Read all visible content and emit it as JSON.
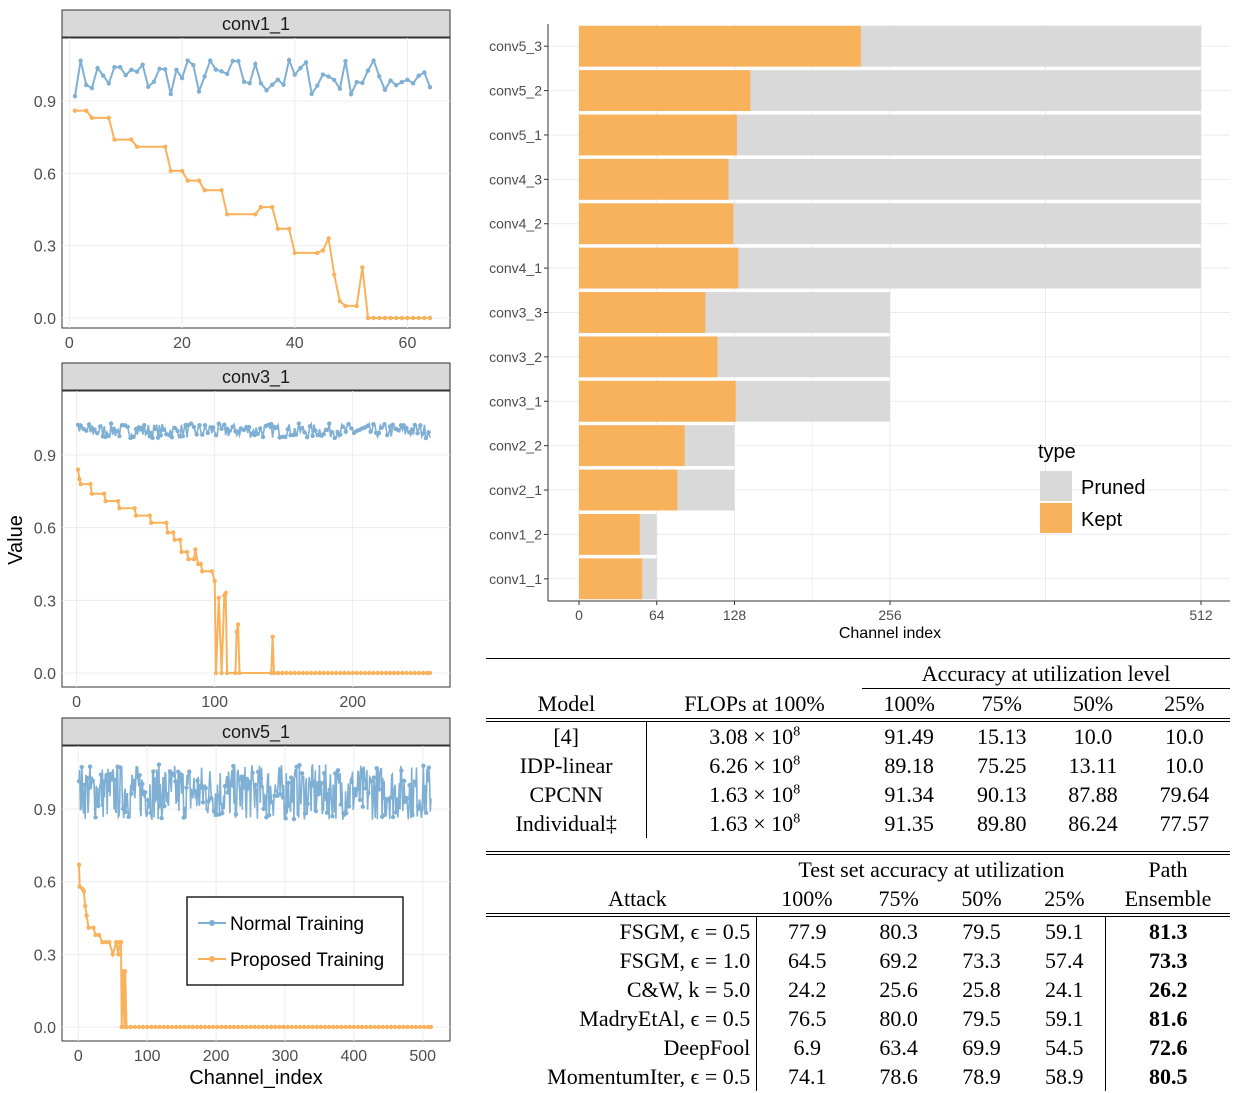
{
  "colors": {
    "normal": "#7fb0d4",
    "proposed": "#f9b25c",
    "pruned": "#d9d9d9",
    "kept": "#f9b25c",
    "strip": "#d9d9d9",
    "grid": "#ececec"
  },
  "chart_data": [
    {
      "type": "line",
      "facets": [
        "conv1_1",
        "conv3_1",
        "conv5_1"
      ],
      "ylabel": "Value",
      "xlabel": "Channel_index",
      "yticks": [
        "0.0",
        "0.3",
        "0.6",
        "0.9"
      ],
      "xticks_by_facet": [
        [
          "0",
          "20",
          "40",
          "60"
        ],
        [
          "0",
          "100",
          "200"
        ],
        [
          "0",
          "100",
          "200",
          "300",
          "400",
          "500"
        ]
      ],
      "legend": [
        "Normal Training",
        "Proposed Training"
      ],
      "series_by_facet": [
        {
          "channels": 64,
          "normal_mean": 1.0,
          "normal_range": [
            0.95,
            1.11
          ],
          "proposed": [
            [
              1,
              0.86
            ],
            [
              3,
              0.86
            ],
            [
              4,
              0.83
            ],
            [
              7,
              0.83
            ],
            [
              8,
              0.74
            ],
            [
              11,
              0.74
            ],
            [
              12,
              0.71
            ],
            [
              17,
              0.71
            ],
            [
              18,
              0.61
            ],
            [
              20,
              0.61
            ],
            [
              21,
              0.57
            ],
            [
              23,
              0.57
            ],
            [
              24,
              0.53
            ],
            [
              27,
              0.53
            ],
            [
              28,
              0.43
            ],
            [
              33,
              0.43
            ],
            [
              34,
              0.46
            ],
            [
              36,
              0.46
            ],
            [
              37,
              0.37
            ],
            [
              39,
              0.37
            ],
            [
              40,
              0.27
            ],
            [
              44,
              0.27
            ],
            [
              45,
              0.28
            ],
            [
              46,
              0.33
            ],
            [
              47,
              0.18
            ],
            [
              48,
              0.07
            ],
            [
              49,
              0.05
            ],
            [
              51,
              0.05
            ],
            [
              52,
              0.21
            ],
            [
              53,
              0.0
            ],
            [
              64,
              0.0
            ]
          ]
        },
        {
          "channels": 256,
          "normal_mean": 1.0,
          "normal_range": [
            0.97,
            1.03
          ],
          "proposed": [
            [
              1,
              0.84
            ],
            [
              2,
              0.8
            ],
            [
              3,
              0.78
            ],
            [
              10,
              0.78
            ],
            [
              11,
              0.74
            ],
            [
              20,
              0.74
            ],
            [
              21,
              0.71
            ],
            [
              30,
              0.71
            ],
            [
              31,
              0.68
            ],
            [
              42,
              0.68
            ],
            [
              43,
              0.65
            ],
            [
              53,
              0.65
            ],
            [
              54,
              0.62
            ],
            [
              65,
              0.62
            ],
            [
              66,
              0.58
            ],
            [
              70,
              0.58
            ],
            [
              71,
              0.55
            ],
            [
              75,
              0.55
            ],
            [
              76,
              0.5
            ],
            [
              80,
              0.5
            ],
            [
              81,
              0.47
            ],
            [
              85,
              0.47
            ],
            [
              86,
              0.51
            ],
            [
              88,
              0.45
            ],
            [
              90,
              0.45
            ],
            [
              91,
              0.42
            ],
            [
              98,
              0.42
            ],
            [
              100,
              0.38
            ],
            [
              101,
              0.0
            ],
            [
              103,
              0.31
            ],
            [
              105,
              0.0
            ],
            [
              107,
              0.32
            ],
            [
              108,
              0.33
            ],
            [
              109,
              0.0
            ],
            [
              115,
              0.0
            ],
            [
              116,
              0.17
            ],
            [
              117,
              0.2
            ],
            [
              118,
              0.0
            ],
            [
              141,
              0.0
            ],
            [
              142,
              0.15
            ],
            [
              143,
              0.0
            ],
            [
              256,
              0.0
            ]
          ]
        },
        {
          "channels": 512,
          "normal_mean": 0.97,
          "normal_range": [
            0.82,
            1.05
          ],
          "proposed": [
            [
              1,
              0.67
            ],
            [
              2,
              0.58
            ],
            [
              6,
              0.57
            ],
            [
              8,
              0.56
            ],
            [
              10,
              0.5
            ],
            [
              12,
              0.46
            ],
            [
              15,
              0.41
            ],
            [
              22,
              0.41
            ],
            [
              25,
              0.38
            ],
            [
              30,
              0.38
            ],
            [
              35,
              0.35
            ],
            [
              40,
              0.35
            ],
            [
              45,
              0.35
            ],
            [
              50,
              0.3
            ],
            [
              55,
              0.35
            ],
            [
              58,
              0.3
            ],
            [
              60,
              0.35
            ],
            [
              62,
              0.35
            ],
            [
              63,
              0.0
            ],
            [
              65,
              0.23
            ],
            [
              67,
              0.0
            ],
            [
              68,
              0.23
            ],
            [
              70,
              0.0
            ],
            [
              512,
              0.0
            ]
          ]
        }
      ]
    },
    {
      "type": "bar",
      "orientation": "horizontal",
      "categories": [
        "conv1_1",
        "conv1_2",
        "conv2_1",
        "conv2_2",
        "conv3_1",
        "conv3_2",
        "conv3_3",
        "conv4_1",
        "conv4_2",
        "conv4_3",
        "conv5_1",
        "conv5_2",
        "conv5_3"
      ],
      "series": [
        {
          "name": "Pruned",
          "values": [
            64,
            64,
            128,
            128,
            256,
            256,
            256,
            512,
            512,
            512,
            512,
            512,
            512
          ]
        },
        {
          "name": "Kept",
          "values": [
            52,
            50,
            81,
            87,
            129,
            114,
            104,
            131,
            127,
            123,
            130,
            141,
            232
          ]
        }
      ],
      "xticks": [
        0,
        64,
        128,
        256,
        512
      ],
      "xlabel": "Channel index",
      "legend_title": "type",
      "legend_labels": [
        "Pruned",
        "Kept"
      ],
      "legend_position": "right-inside"
    }
  ],
  "table1": {
    "group_header": "Accuracy at utilization level",
    "headers": [
      "Model",
      "FLOPs at 100%",
      "100%",
      "75%",
      "50%",
      "25%"
    ],
    "rows": [
      {
        "model": "[4]",
        "flops": "3.08 × 10",
        "exp": "8",
        "vals": [
          "91.49",
          "15.13",
          "10.0",
          "10.0"
        ]
      },
      {
        "model": "IDP-linear",
        "flops": "6.26 × 10",
        "exp": "8",
        "vals": [
          "89.18",
          "75.25",
          "13.11",
          "10.0"
        ]
      },
      {
        "model": "CPCNN",
        "flops": "1.63 × 10",
        "exp": "8",
        "vals": [
          "91.34",
          "90.13",
          "87.88",
          "79.64"
        ]
      },
      {
        "model": "Individual‡",
        "flops": "1.63 × 10",
        "exp": "8",
        "vals": [
          "91.35",
          "89.80",
          "86.24",
          "77.57"
        ]
      }
    ]
  },
  "table2": {
    "group_header": "Test set accuracy at utilization",
    "attack_header": "Attack",
    "levels": [
      "100%",
      "75%",
      "50%",
      "25%"
    ],
    "path_header_1": "Path",
    "path_header_2": "Ensemble",
    "rows": [
      {
        "attack": "FSGM, ϵ = 0.5",
        "vals": [
          "77.9",
          "80.3",
          "79.5",
          "59.1"
        ],
        "ens": "81.3"
      },
      {
        "attack": "FSGM, ϵ = 1.0",
        "vals": [
          "64.5",
          "69.2",
          "73.3",
          "57.4"
        ],
        "ens": "73.3"
      },
      {
        "attack": "C&W, k = 5.0",
        "vals": [
          "24.2",
          "25.6",
          "25.8",
          "24.1"
        ],
        "ens": "26.2"
      },
      {
        "attack": "MadryEtAl, ϵ = 0.5",
        "vals": [
          "76.5",
          "80.0",
          "79.5",
          "59.1"
        ],
        "ens": "81.6"
      },
      {
        "attack": "DeepFool",
        "vals": [
          "6.9",
          "63.4",
          "69.9",
          "54.5"
        ],
        "ens": "72.6"
      },
      {
        "attack": "MomentumIter, ϵ = 0.5",
        "vals": [
          "74.1",
          "78.6",
          "78.9",
          "58.9"
        ],
        "ens": "80.5"
      }
    ]
  }
}
